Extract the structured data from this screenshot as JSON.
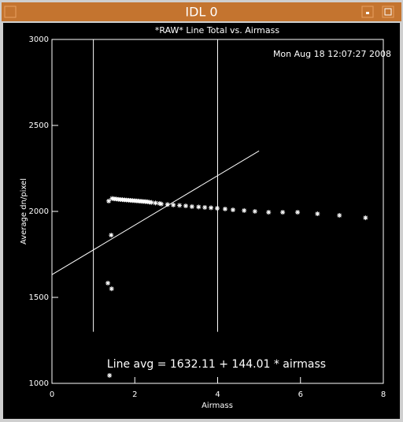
{
  "window": {
    "title": "IDL 0"
  },
  "chart_data": {
    "type": "scatter",
    "title": "*RAW* Line Total vs. Airmass",
    "timestamp": "Mon Aug 18 12:07:27 2008",
    "annotation": "Line avg = 1632.11 + 144.01 * airmass",
    "x_label": "Airmass",
    "y_label": "Average dn/pixel",
    "xlim": [
      0,
      8
    ],
    "xticks": [
      0,
      2,
      4,
      6,
      8
    ],
    "ylim": [
      1000,
      3000
    ],
    "yticks": [
      1000,
      1500,
      2000,
      2500,
      3000
    ],
    "color": "#ffffff",
    "points": {
      "x": [
        1.37,
        1.45,
        1.5,
        1.55,
        1.6,
        1.65,
        1.7,
        1.75,
        1.8,
        1.85,
        1.9,
        1.95,
        2.0,
        2.05,
        2.1,
        2.15,
        2.2,
        2.25,
        2.3,
        2.35,
        2.4,
        2.5,
        2.6,
        2.64,
        2.79,
        2.93,
        3.08,
        3.23,
        3.38,
        3.54,
        3.69,
        3.84,
        3.99,
        4.18,
        4.37,
        4.64,
        4.9,
        5.23,
        5.57,
        5.93,
        6.41,
        6.94,
        7.57,
        1.43,
        1.35,
        1.44,
        1.39
      ],
      "values": [
        2060,
        2075,
        2073,
        2072,
        2070,
        2069,
        2068,
        2067,
        2066,
        2065,
        2064,
        2063,
        2062,
        2061,
        2060,
        2059,
        2058,
        2057,
        2056,
        2054,
        2052,
        2049,
        2046,
        2043,
        2040,
        2037,
        2035,
        2032,
        2028,
        2026,
        2023,
        2021,
        2018,
        2014,
        2009,
        2005,
        2000,
        1995,
        1995,
        1995,
        1986,
        1977,
        1963,
        1862,
        1583,
        1550,
        1046
      ]
    },
    "fit": {
      "x": [
        0,
        5
      ],
      "values": [
        1632,
        2352
      ]
    },
    "vlines": [
      {
        "x": 1,
        "y": [
          1300,
          3000
        ]
      },
      {
        "x": 4,
        "y": [
          1300,
          3000
        ]
      }
    ]
  }
}
